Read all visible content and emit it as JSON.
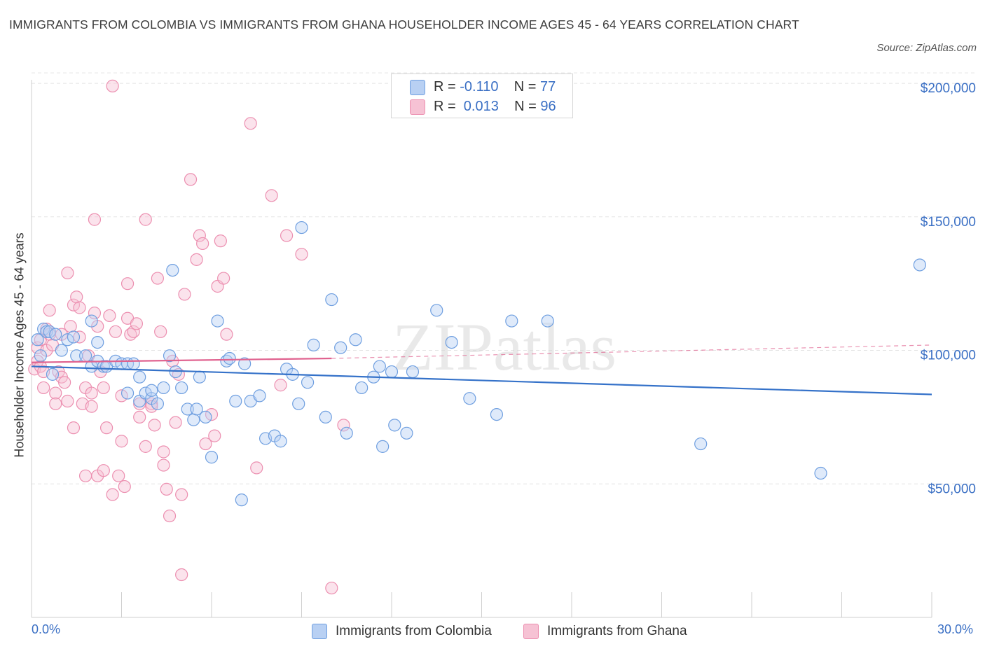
{
  "title": "IMMIGRANTS FROM COLOMBIA VS IMMIGRANTS FROM GHANA HOUSEHOLDER INCOME AGES 45 - 64 YEARS CORRELATION CHART",
  "source": "Source: ZipAtlas.com",
  "watermark": "ZIPatlas",
  "legend": {
    "colombia": {
      "r_label": "R = ",
      "r_value": "-0.110",
      "n_label": "N = ",
      "n_value": "77"
    },
    "ghana": {
      "r_label": "R = ",
      "r_value": " 0.013",
      "n_label": "N = ",
      "n_value": "96"
    }
  },
  "colors": {
    "colombia": "#6f9fe0",
    "colombia_fill": "#b8d0f3",
    "colombia_line": "#3572c9",
    "ghana": "#ec8fb0",
    "ghana_fill": "#f6c2d4",
    "ghana_line": "#e0628f",
    "axis_text": "#3a6fc4",
    "grid": "#e3e3e3"
  },
  "chart_data": {
    "type": "scatter",
    "title": "IMMIGRANTS FROM COLOMBIA VS IMMIGRANTS FROM GHANA HOUSEHOLDER INCOME AGES 45 - 64 YEARS CORRELATION CHART",
    "xlabel": "",
    "ylabel": "Householder Income Ages 45 - 64 years",
    "x_tick_labels": [
      "0.0%",
      "30.0%"
    ],
    "y_tick_labels": [
      "$50,000",
      "$100,000",
      "$150,000",
      "$200,000"
    ],
    "y_ticks": [
      50000,
      100000,
      150000,
      200000
    ],
    "xlim": [
      0,
      30
    ],
    "ylim": [
      0,
      205000
    ],
    "grid": true,
    "legend_position": "top-center",
    "series": [
      {
        "name": "Immigrants from Colombia",
        "stats": {
          "R": -0.11,
          "N": 77
        },
        "trend": {
          "x": [
            0,
            30
          ],
          "y": [
            94000,
            83500
          ]
        },
        "points": [
          [
            0.2,
            104000
          ],
          [
            0.3,
            98000
          ],
          [
            0.4,
            108000
          ],
          [
            0.5,
            107000
          ],
          [
            0.6,
            107000
          ],
          [
            0.7,
            91000
          ],
          [
            0.8,
            106000
          ],
          [
            1.0,
            100000
          ],
          [
            1.2,
            104000
          ],
          [
            1.4,
            105000
          ],
          [
            1.5,
            98000
          ],
          [
            1.8,
            98000
          ],
          [
            2.0,
            111000
          ],
          [
            2.0,
            94000
          ],
          [
            2.2,
            103000
          ],
          [
            2.2,
            96000
          ],
          [
            2.4,
            94000
          ],
          [
            2.5,
            94000
          ],
          [
            2.8,
            96000
          ],
          [
            3.0,
            95000
          ],
          [
            3.2,
            84000
          ],
          [
            3.2,
            95000
          ],
          [
            3.4,
            95000
          ],
          [
            3.6,
            81000
          ],
          [
            3.6,
            90000
          ],
          [
            3.8,
            84000
          ],
          [
            4.0,
            82000
          ],
          [
            4.0,
            85000
          ],
          [
            4.2,
            80000
          ],
          [
            4.4,
            86000
          ],
          [
            4.6,
            98000
          ],
          [
            4.7,
            130000
          ],
          [
            4.8,
            92000
          ],
          [
            5.0,
            86000
          ],
          [
            5.2,
            78000
          ],
          [
            5.4,
            74000
          ],
          [
            5.5,
            78000
          ],
          [
            5.6,
            90000
          ],
          [
            5.8,
            75000
          ],
          [
            6.0,
            60000
          ],
          [
            6.2,
            111000
          ],
          [
            6.5,
            96000
          ],
          [
            6.6,
            97000
          ],
          [
            6.8,
            81000
          ],
          [
            7.0,
            44000
          ],
          [
            7.1,
            95000
          ],
          [
            7.3,
            81000
          ],
          [
            7.6,
            83000
          ],
          [
            7.8,
            67000
          ],
          [
            8.1,
            68000
          ],
          [
            8.3,
            66000
          ],
          [
            8.5,
            93000
          ],
          [
            8.7,
            91000
          ],
          [
            8.9,
            80000
          ],
          [
            9.0,
            146000
          ],
          [
            9.2,
            88000
          ],
          [
            9.4,
            102000
          ],
          [
            9.8,
            75000
          ],
          [
            10.0,
            119000
          ],
          [
            10.3,
            101000
          ],
          [
            10.5,
            69000
          ],
          [
            10.8,
            104000
          ],
          [
            11.0,
            86000
          ],
          [
            11.4,
            90000
          ],
          [
            11.6,
            94000
          ],
          [
            11.7,
            64000
          ],
          [
            12.0,
            92000
          ],
          [
            12.1,
            72000
          ],
          [
            12.5,
            69000
          ],
          [
            12.7,
            92000
          ],
          [
            13.5,
            115000
          ],
          [
            14.0,
            103000
          ],
          [
            14.6,
            82000
          ],
          [
            15.5,
            76000
          ],
          [
            16.0,
            111000
          ],
          [
            17.2,
            111000
          ],
          [
            22.3,
            65000
          ],
          [
            26.3,
            54000
          ],
          [
            29.6,
            132000
          ]
        ]
      },
      {
        "name": "Immigrants from Ghana",
        "stats": {
          "R": 0.013,
          "N": 96
        },
        "trend": {
          "x": [
            0,
            10
          ],
          "y": [
            95500,
            97000
          ]
        },
        "trend_dashed": {
          "x": [
            10,
            30
          ],
          "y": [
            97000,
            102000
          ]
        },
        "points": [
          [
            0.1,
            93000
          ],
          [
            0.2,
            96000
          ],
          [
            0.2,
            101000
          ],
          [
            0.3,
            104000
          ],
          [
            0.3,
            94000
          ],
          [
            0.4,
            92000
          ],
          [
            0.4,
            86000
          ],
          [
            0.5,
            100000
          ],
          [
            0.5,
            108000
          ],
          [
            0.6,
            106000
          ],
          [
            0.6,
            115000
          ],
          [
            0.7,
            102000
          ],
          [
            0.8,
            84000
          ],
          [
            0.8,
            80000
          ],
          [
            0.9,
            92000
          ],
          [
            1.0,
            106000
          ],
          [
            1.0,
            90000
          ],
          [
            1.1,
            88000
          ],
          [
            1.2,
            81000
          ],
          [
            1.2,
            129000
          ],
          [
            1.3,
            109000
          ],
          [
            1.4,
            117000
          ],
          [
            1.4,
            71000
          ],
          [
            1.5,
            120000
          ],
          [
            1.6,
            105000
          ],
          [
            1.6,
            116000
          ],
          [
            1.7,
            80000
          ],
          [
            1.8,
            53000
          ],
          [
            1.8,
            86000
          ],
          [
            1.9,
            98000
          ],
          [
            2.0,
            84000
          ],
          [
            2.0,
            79000
          ],
          [
            2.1,
            114000
          ],
          [
            2.1,
            149000
          ],
          [
            2.2,
            109000
          ],
          [
            2.2,
            53000
          ],
          [
            2.3,
            92000
          ],
          [
            2.4,
            86000
          ],
          [
            2.4,
            55000
          ],
          [
            2.5,
            71000
          ],
          [
            2.6,
            113000
          ],
          [
            2.7,
            46000
          ],
          [
            2.7,
            199000
          ],
          [
            2.8,
            107000
          ],
          [
            2.9,
            53000
          ],
          [
            3.0,
            83000
          ],
          [
            3.0,
            66000
          ],
          [
            3.1,
            49000
          ],
          [
            3.2,
            125000
          ],
          [
            3.2,
            112000
          ],
          [
            3.3,
            106000
          ],
          [
            3.4,
            107000
          ],
          [
            3.5,
            110000
          ],
          [
            3.6,
            75000
          ],
          [
            3.6,
            80000
          ],
          [
            3.8,
            149000
          ],
          [
            3.8,
            64000
          ],
          [
            4.0,
            80000
          ],
          [
            4.0,
            79000
          ],
          [
            4.1,
            72000
          ],
          [
            4.2,
            127000
          ],
          [
            4.3,
            107000
          ],
          [
            4.4,
            62000
          ],
          [
            4.4,
            57000
          ],
          [
            4.5,
            48000
          ],
          [
            4.6,
            38000
          ],
          [
            4.7,
            96000
          ],
          [
            4.8,
            73000
          ],
          [
            4.9,
            91000
          ],
          [
            5.0,
            46000
          ],
          [
            5.0,
            16000
          ],
          [
            5.1,
            121000
          ],
          [
            5.3,
            164000
          ],
          [
            5.5,
            134000
          ],
          [
            5.6,
            143000
          ],
          [
            5.7,
            140000
          ],
          [
            5.8,
            65000
          ],
          [
            6.0,
            76000
          ],
          [
            6.1,
            68000
          ],
          [
            6.2,
            124000
          ],
          [
            6.3,
            141000
          ],
          [
            6.4,
            127000
          ],
          [
            6.5,
            106000
          ],
          [
            7.3,
            185000
          ],
          [
            7.5,
            56000
          ],
          [
            8.0,
            158000
          ],
          [
            8.3,
            87000
          ],
          [
            8.5,
            143000
          ],
          [
            9.0,
            136000
          ],
          [
            10.0,
            11000
          ],
          [
            10.4,
            72000
          ]
        ]
      }
    ]
  },
  "bottom_legend": {
    "colombia": "Immigrants from Colombia",
    "ghana": "Immigrants from Ghana"
  }
}
